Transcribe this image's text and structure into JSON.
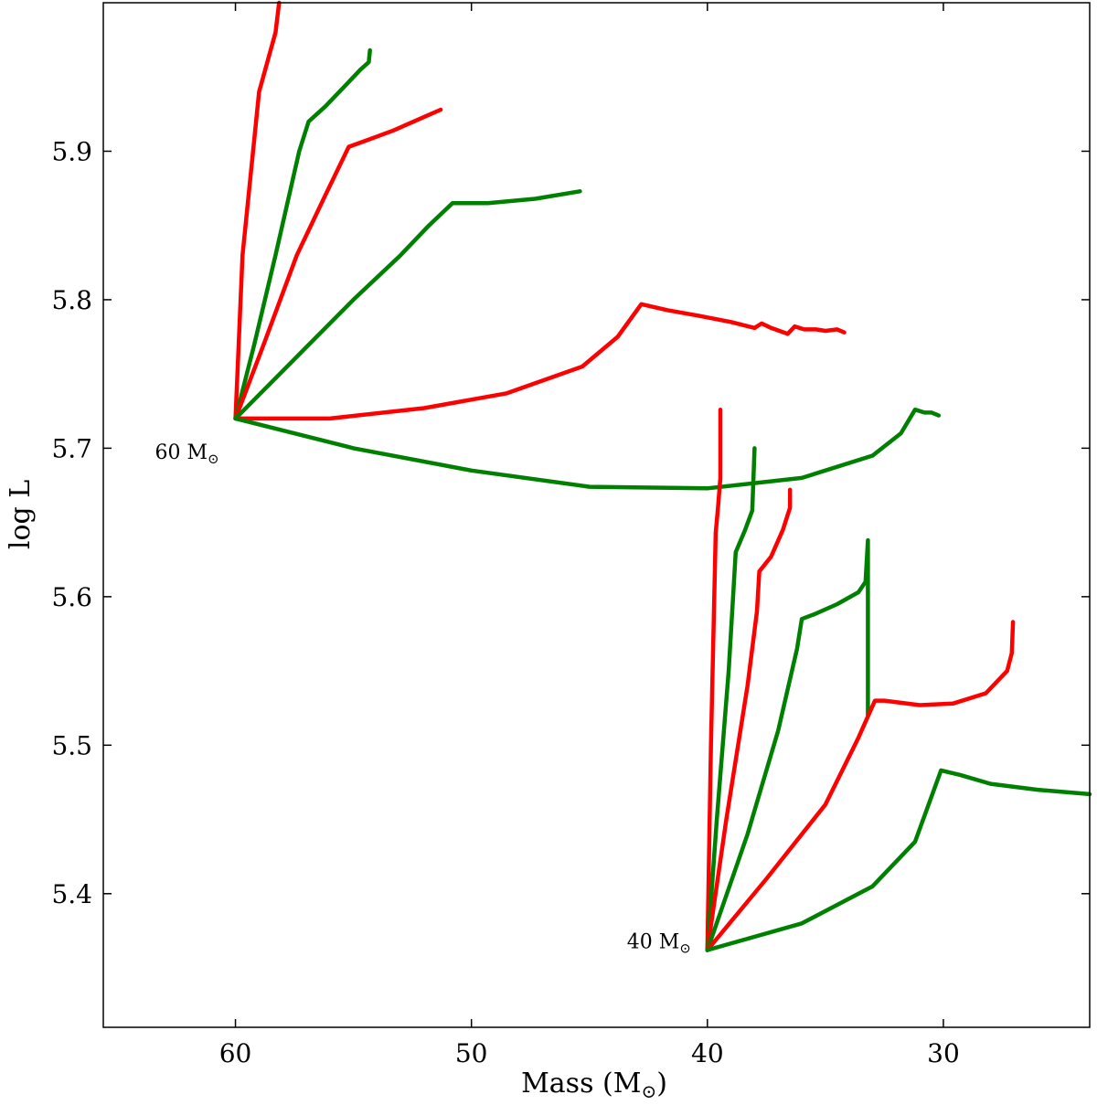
{
  "chart_data": {
    "type": "line",
    "title": "",
    "xlabel": "Mass (M",
    "xlabel_sub": "⊙",
    "xlabel_close": ")",
    "ylabel": "log L",
    "xlim": [
      65.6,
      23.8
    ],
    "ylim": [
      5.31,
      6.0
    ],
    "x_ticks": [
      60,
      50,
      40,
      30
    ],
    "y_ticks": [
      5.4,
      5.5,
      5.6,
      5.7,
      5.8,
      5.9
    ],
    "grid": false,
    "legend": "none",
    "colors": {
      "red": "#ff0000",
      "green": "#008000"
    },
    "annotations": [
      {
        "id": "ann60",
        "text": "60 M",
        "sub": "⊙",
        "x": 60,
        "y": 5.72
      },
      {
        "id": "ann40",
        "text": "40 M",
        "sub": "⊙",
        "x": 40,
        "y": 5.362
      }
    ],
    "series": [
      {
        "color": "red",
        "points": [
          [
            60,
            5.72
          ],
          [
            59.7,
            5.83
          ],
          [
            59,
            5.94
          ],
          [
            58.3,
            5.98
          ],
          [
            58.15,
            6.0
          ]
        ]
      },
      {
        "color": "green",
        "points": [
          [
            60,
            5.72
          ],
          [
            59.2,
            5.77
          ],
          [
            58.3,
            5.83
          ],
          [
            57.3,
            5.9
          ],
          [
            56.9,
            5.92
          ],
          [
            56.2,
            5.93
          ],
          [
            55.3,
            5.945
          ],
          [
            54.7,
            5.955
          ],
          [
            54.35,
            5.96
          ],
          [
            54.3,
            5.968
          ]
        ]
      },
      {
        "color": "red",
        "points": [
          [
            60,
            5.72
          ],
          [
            58.8,
            5.77
          ],
          [
            57.4,
            5.83
          ],
          [
            56.2,
            5.87
          ],
          [
            55.2,
            5.903
          ],
          [
            54.5,
            5.907
          ],
          [
            53.3,
            5.914
          ],
          [
            52.3,
            5.921
          ],
          [
            51.3,
            5.928
          ]
        ]
      },
      {
        "color": "green",
        "points": [
          [
            60,
            5.72
          ],
          [
            57.5,
            5.76
          ],
          [
            55,
            5.8
          ],
          [
            53,
            5.83
          ],
          [
            51.8,
            5.85
          ],
          [
            50.8,
            5.865
          ],
          [
            50.4,
            5.865
          ],
          [
            49.3,
            5.865
          ],
          [
            47.3,
            5.868
          ],
          [
            45.4,
            5.873
          ]
        ]
      },
      {
        "color": "red",
        "points": [
          [
            60,
            5.72
          ],
          [
            56,
            5.72
          ],
          [
            52,
            5.727
          ],
          [
            48.5,
            5.737
          ],
          [
            45.3,
            5.755
          ],
          [
            43.8,
            5.775
          ],
          [
            42.8,
            5.797
          ],
          [
            41.7,
            5.793
          ],
          [
            40.3,
            5.789
          ],
          [
            39,
            5.785
          ],
          [
            38,
            5.781
          ],
          [
            37.7,
            5.784
          ],
          [
            37.3,
            5.781
          ],
          [
            36.6,
            5.777
          ],
          [
            36.3,
            5.782
          ],
          [
            35.9,
            5.78
          ],
          [
            35.4,
            5.78
          ],
          [
            35,
            5.779
          ],
          [
            34.5,
            5.78
          ],
          [
            34.2,
            5.778
          ]
        ]
      },
      {
        "color": "green",
        "points": [
          [
            60,
            5.72
          ],
          [
            55,
            5.7
          ],
          [
            50,
            5.685
          ],
          [
            45,
            5.674
          ],
          [
            40,
            5.673
          ],
          [
            36,
            5.68
          ],
          [
            33,
            5.695
          ],
          [
            31.8,
            5.71
          ],
          [
            31.2,
            5.726
          ],
          [
            30.8,
            5.724
          ],
          [
            30.5,
            5.724
          ],
          [
            30.2,
            5.722
          ]
        ]
      },
      {
        "color": "red",
        "points": [
          [
            40,
            5.362
          ],
          [
            39.85,
            5.5
          ],
          [
            39.65,
            5.643
          ],
          [
            39.55,
            5.66
          ],
          [
            39.45,
            5.68
          ],
          [
            39.45,
            5.726
          ]
        ]
      },
      {
        "color": "green",
        "points": [
          [
            40,
            5.362
          ],
          [
            39.6,
            5.45
          ],
          [
            39.1,
            5.55
          ],
          [
            38.8,
            5.63
          ],
          [
            38.4,
            5.645
          ],
          [
            38.1,
            5.658
          ],
          [
            38,
            5.7
          ]
        ]
      },
      {
        "color": "red",
        "points": [
          [
            40,
            5.362
          ],
          [
            39.2,
            5.45
          ],
          [
            38.3,
            5.54
          ],
          [
            37.9,
            5.59
          ],
          [
            37.8,
            5.617
          ],
          [
            37.3,
            5.627
          ],
          [
            36.8,
            5.645
          ],
          [
            36.5,
            5.66
          ],
          [
            36.5,
            5.672
          ]
        ]
      },
      {
        "color": "green",
        "points": [
          [
            40,
            5.362
          ],
          [
            38.3,
            5.44
          ],
          [
            37,
            5.51
          ],
          [
            36.2,
            5.565
          ],
          [
            36,
            5.585
          ],
          [
            35.5,
            5.588
          ],
          [
            34.5,
            5.595
          ],
          [
            33.6,
            5.603
          ],
          [
            33.3,
            5.61
          ],
          [
            33.2,
            5.638
          ],
          [
            33.2,
            5.52
          ]
        ]
      },
      {
        "color": "red",
        "points": [
          [
            40,
            5.362
          ],
          [
            37.5,
            5.41
          ],
          [
            35,
            5.46
          ],
          [
            33.6,
            5.505
          ],
          [
            32.9,
            5.53
          ],
          [
            32.5,
            5.53
          ],
          [
            31,
            5.527
          ],
          [
            29.6,
            5.528
          ],
          [
            28.2,
            5.535
          ],
          [
            27.3,
            5.55
          ],
          [
            27.1,
            5.562
          ],
          [
            27.05,
            5.583
          ]
        ]
      },
      {
        "color": "green",
        "points": [
          [
            40,
            5.362
          ],
          [
            36,
            5.38
          ],
          [
            33,
            5.405
          ],
          [
            31.2,
            5.435
          ],
          [
            30.1,
            5.483
          ],
          [
            29.3,
            5.48
          ],
          [
            28,
            5.474
          ],
          [
            26,
            5.47
          ],
          [
            23.8,
            5.467
          ]
        ]
      }
    ]
  }
}
